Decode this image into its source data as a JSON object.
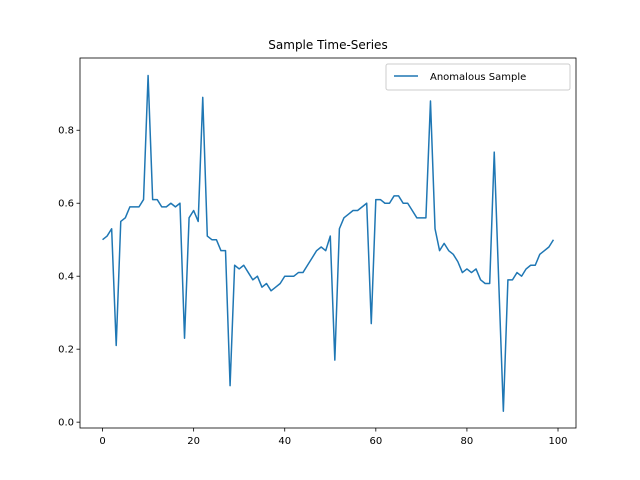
{
  "chart_data": {
    "type": "line",
    "title": "Sample Time-Series",
    "xlabel": "",
    "ylabel": "",
    "xlim": [
      -4.95,
      103.95
    ],
    "ylim": [
      -0.016,
      0.998
    ],
    "xticks": [
      0,
      20,
      40,
      60,
      80,
      100
    ],
    "yticks": [
      0.0,
      0.2,
      0.4,
      0.6,
      0.8
    ],
    "grid": false,
    "legend_position": "top-right",
    "series": [
      {
        "name": "Anomalous Sample",
        "color": "#1f77b4",
        "x": [
          0,
          1,
          2,
          3,
          4,
          5,
          6,
          7,
          8,
          9,
          10,
          11,
          12,
          13,
          14,
          15,
          16,
          17,
          18,
          19,
          20,
          21,
          22,
          23,
          24,
          25,
          26,
          27,
          28,
          29,
          30,
          31,
          32,
          33,
          34,
          35,
          36,
          37,
          38,
          39,
          40,
          41,
          42,
          43,
          44,
          45,
          46,
          47,
          48,
          49,
          50,
          51,
          52,
          53,
          54,
          55,
          56,
          57,
          58,
          59,
          60,
          61,
          62,
          63,
          64,
          65,
          66,
          67,
          68,
          69,
          70,
          71,
          72,
          73,
          74,
          75,
          76,
          77,
          78,
          79,
          80,
          81,
          82,
          83,
          84,
          85,
          86,
          87,
          88,
          89,
          90,
          91,
          92,
          93,
          94,
          95,
          96,
          97,
          98,
          99
        ],
        "values": [
          0.5,
          0.51,
          0.53,
          0.21,
          0.55,
          0.56,
          0.59,
          0.59,
          0.59,
          0.61,
          0.95,
          0.61,
          0.61,
          0.59,
          0.59,
          0.6,
          0.59,
          0.6,
          0.23,
          0.56,
          0.58,
          0.55,
          0.89,
          0.51,
          0.5,
          0.5,
          0.47,
          0.47,
          0.1,
          0.43,
          0.42,
          0.43,
          0.41,
          0.39,
          0.4,
          0.37,
          0.38,
          0.36,
          0.37,
          0.38,
          0.4,
          0.4,
          0.4,
          0.41,
          0.41,
          0.43,
          0.45,
          0.47,
          0.48,
          0.47,
          0.51,
          0.17,
          0.53,
          0.56,
          0.57,
          0.58,
          0.58,
          0.59,
          0.6,
          0.27,
          0.61,
          0.61,
          0.6,
          0.6,
          0.62,
          0.62,
          0.6,
          0.6,
          0.58,
          0.56,
          0.56,
          0.56,
          0.88,
          0.53,
          0.47,
          0.49,
          0.47,
          0.46,
          0.44,
          0.41,
          0.42,
          0.41,
          0.42,
          0.39,
          0.38,
          0.38,
          0.74,
          0.38,
          0.03,
          0.39,
          0.39,
          0.41,
          0.4,
          0.42,
          0.43,
          0.43,
          0.46,
          0.47,
          0.48,
          0.5
        ]
      }
    ]
  }
}
